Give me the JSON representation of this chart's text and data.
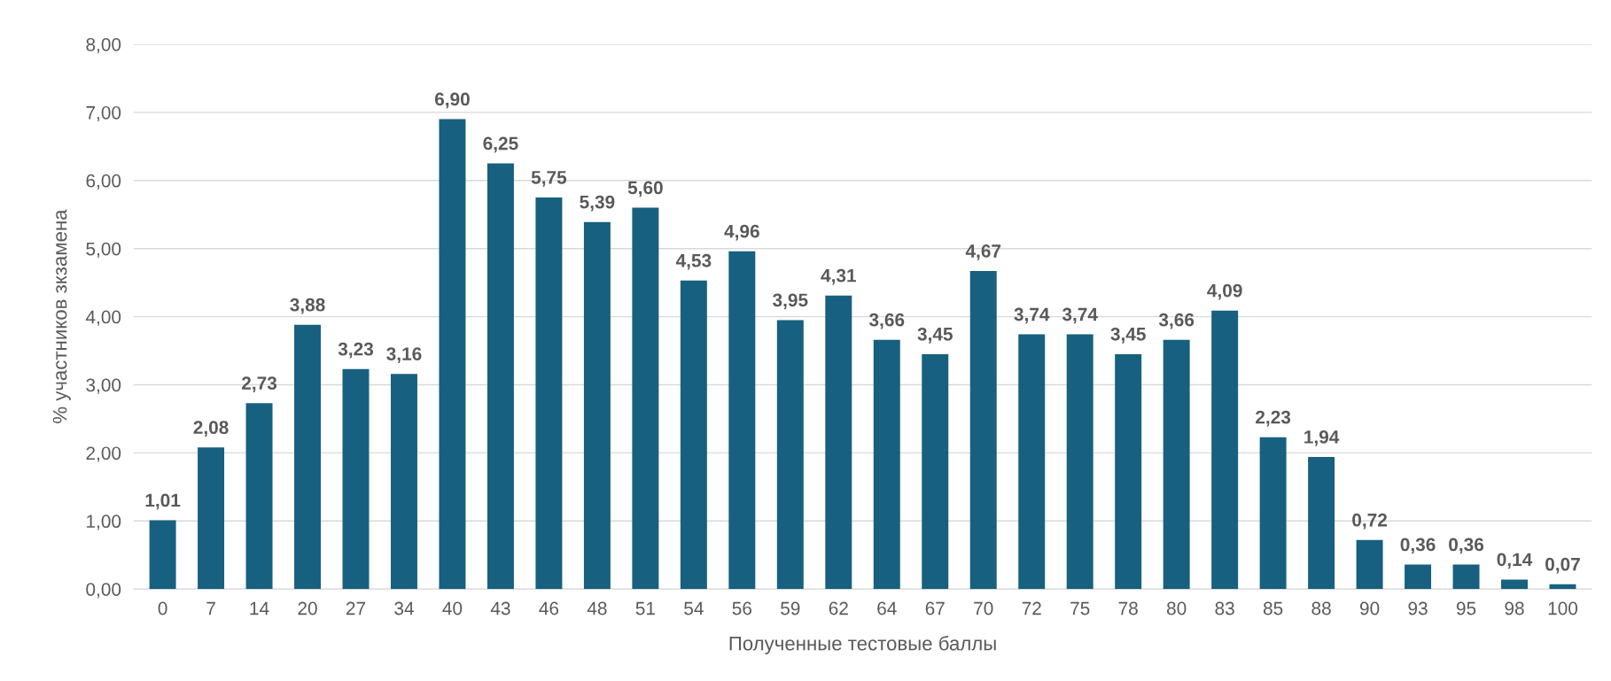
{
  "chart_data": {
    "type": "bar",
    "xlabel": "Полученные тестовые баллы",
    "ylabel": "% участников зкзамена",
    "categories": [
      "0",
      "7",
      "14",
      "20",
      "27",
      "34",
      "40",
      "43",
      "46",
      "48",
      "51",
      "54",
      "56",
      "59",
      "62",
      "64",
      "67",
      "70",
      "72",
      "75",
      "78",
      "80",
      "83",
      "85",
      "88",
      "90",
      "93",
      "95",
      "98",
      "100"
    ],
    "values": [
      1.01,
      2.08,
      2.73,
      3.88,
      3.23,
      3.16,
      6.9,
      6.25,
      5.75,
      5.39,
      5.6,
      4.53,
      4.96,
      3.95,
      4.31,
      3.66,
      3.45,
      4.67,
      3.74,
      3.74,
      3.45,
      3.66,
      4.09,
      2.23,
      1.94,
      0.72,
      0.36,
      0.36,
      0.14,
      0.07
    ],
    "value_labels": [
      "1,01",
      "2,08",
      "2,73",
      "3,88",
      "3,23",
      "3,16",
      "6,90",
      "6,25",
      "5,75",
      "5,39",
      "5,60",
      "4,53",
      "4,96",
      "3,95",
      "4,31",
      "3,66",
      "3,45",
      "4,67",
      "3,74",
      "3,74",
      "3,45",
      "3,66",
      "4,09",
      "2,23",
      "1,94",
      "0,72",
      "0,36",
      "0,36",
      "0,14",
      "0,07"
    ],
    "color": "#17607f",
    "ylim": [
      0,
      8
    ],
    "yticks": [
      {
        "value": 0,
        "label": "0,00"
      },
      {
        "value": 1,
        "label": "1,00"
      },
      {
        "value": 2,
        "label": "2,00"
      },
      {
        "value": 3,
        "label": "3,00"
      },
      {
        "value": 4,
        "label": "4,00"
      },
      {
        "value": 5,
        "label": "5,00"
      },
      {
        "value": 6,
        "label": "6,00"
      },
      {
        "value": 7,
        "label": "7,00"
      },
      {
        "value": 8,
        "label": "8,00"
      }
    ],
    "grid": "y"
  }
}
